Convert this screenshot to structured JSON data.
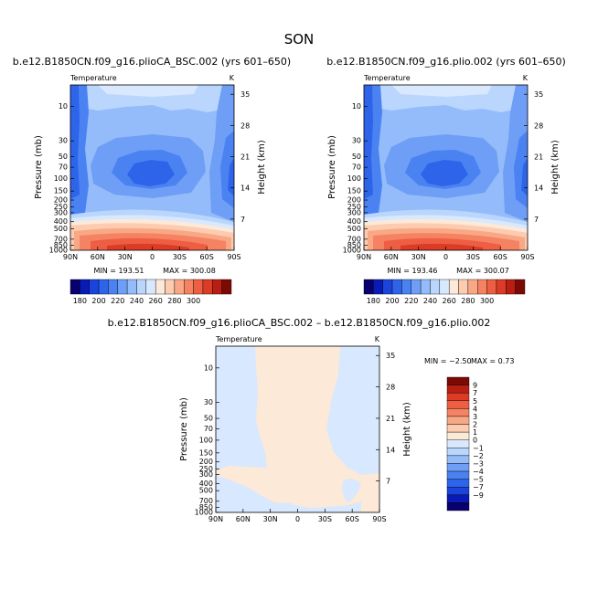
{
  "page": {
    "season": "SON"
  },
  "colors": {
    "abs_palette": [
      "#08006e",
      "#0a1ab4",
      "#1a44dc",
      "#2e64ea",
      "#4a82f2",
      "#6e9ef6",
      "#94bcfa",
      "#bad6fd",
      "#d8e8fe",
      "#fde9d8",
      "#fccbb0",
      "#f9a886",
      "#f58363",
      "#ed5e42",
      "#dc3b26",
      "#b81f12",
      "#7c0a04"
    ],
    "diff_palette": [
      "#08006e",
      "#0a1ab4",
      "#1a44dc",
      "#2e64ea",
      "#4a82f2",
      "#6e9ef6",
      "#94bcfa",
      "#bad6fd",
      "#d8e8fe",
      "#fde9d8",
      "#fccbb0",
      "#f9a886",
      "#f58363",
      "#ed5e42",
      "#dc3b26",
      "#b81f12",
      "#7c0a04"
    ]
  },
  "chart_data": [
    {
      "type": "heatmap",
      "title": "b.e12.B1850CN.f09_g16.plioCA_BSC.002 (yrs 601–650)",
      "variable": "Temperature",
      "units": "K",
      "ylabel": "Pressure (mb)",
      "y2label": "Height (km)",
      "x_ticks": [
        "90N",
        "60N",
        "30N",
        "0",
        "30S",
        "60S",
        "90S"
      ],
      "y_ticks": [
        "10",
        "30",
        "50",
        "70",
        "100",
        "150",
        "200",
        "250",
        "300",
        "400",
        "500",
        "700",
        "850",
        "1000"
      ],
      "y2_ticks": [
        "35",
        "28",
        "21",
        "14",
        "7"
      ],
      "min_label": "MIN = 193.51",
      "max_label": "MAX = 300.08",
      "min": 193.51,
      "max": 300.08
    },
    {
      "type": "heatmap",
      "title": "b.e12.B1850CN.f09_g16.plio.002 (yrs 601–650)",
      "variable": "Temperature",
      "units": "K",
      "ylabel": "Pressure (mb)",
      "y2label": "Height (km)",
      "x_ticks": [
        "90N",
        "60N",
        "30N",
        "0",
        "30S",
        "60S",
        "90S"
      ],
      "y_ticks": [
        "10",
        "30",
        "50",
        "70",
        "100",
        "150",
        "200",
        "250",
        "300",
        "400",
        "500",
        "700",
        "850",
        "1000"
      ],
      "y2_ticks": [
        "35",
        "28",
        "21",
        "14",
        "7"
      ],
      "min_label": "MIN = 193.46",
      "max_label": "MAX = 300.07",
      "min": 193.46,
      "max": 300.07
    },
    {
      "type": "heatmap",
      "title": "b.e12.B1850CN.f09_g16.plioCA_BSC.002 – b.e12.B1850CN.f09_g16.plio.002",
      "variable": "Temperature",
      "units": "K",
      "ylabel": "Pressure (mb)",
      "y2label": "Height (km)",
      "x_ticks": [
        "90N",
        "60N",
        "30N",
        "0",
        "30S",
        "60S",
        "90S"
      ],
      "y_ticks": [
        "10",
        "30",
        "50",
        "70",
        "100",
        "150",
        "200",
        "250",
        "300",
        "400",
        "500",
        "700",
        "850",
        "1000"
      ],
      "y2_ticks": [
        "35",
        "28",
        "21",
        "14",
        "7"
      ],
      "min_label": "MIN =  −2.50",
      "max_label": "MAX =    0.73",
      "min": -2.5,
      "max": 0.73
    }
  ],
  "colorbars": {
    "absolute": {
      "labels": [
        "180",
        "190",
        "200",
        "210",
        "220",
        "230",
        "240",
        "250",
        "260",
        "270",
        "280",
        "290",
        "300"
      ]
    },
    "difference": {
      "labels": [
        "9",
        "7",
        "5",
        "4",
        "3",
        "2",
        "1",
        "0",
        "−1",
        "−2",
        "−3",
        "−4",
        "−5",
        "−7",
        "−9"
      ]
    }
  }
}
